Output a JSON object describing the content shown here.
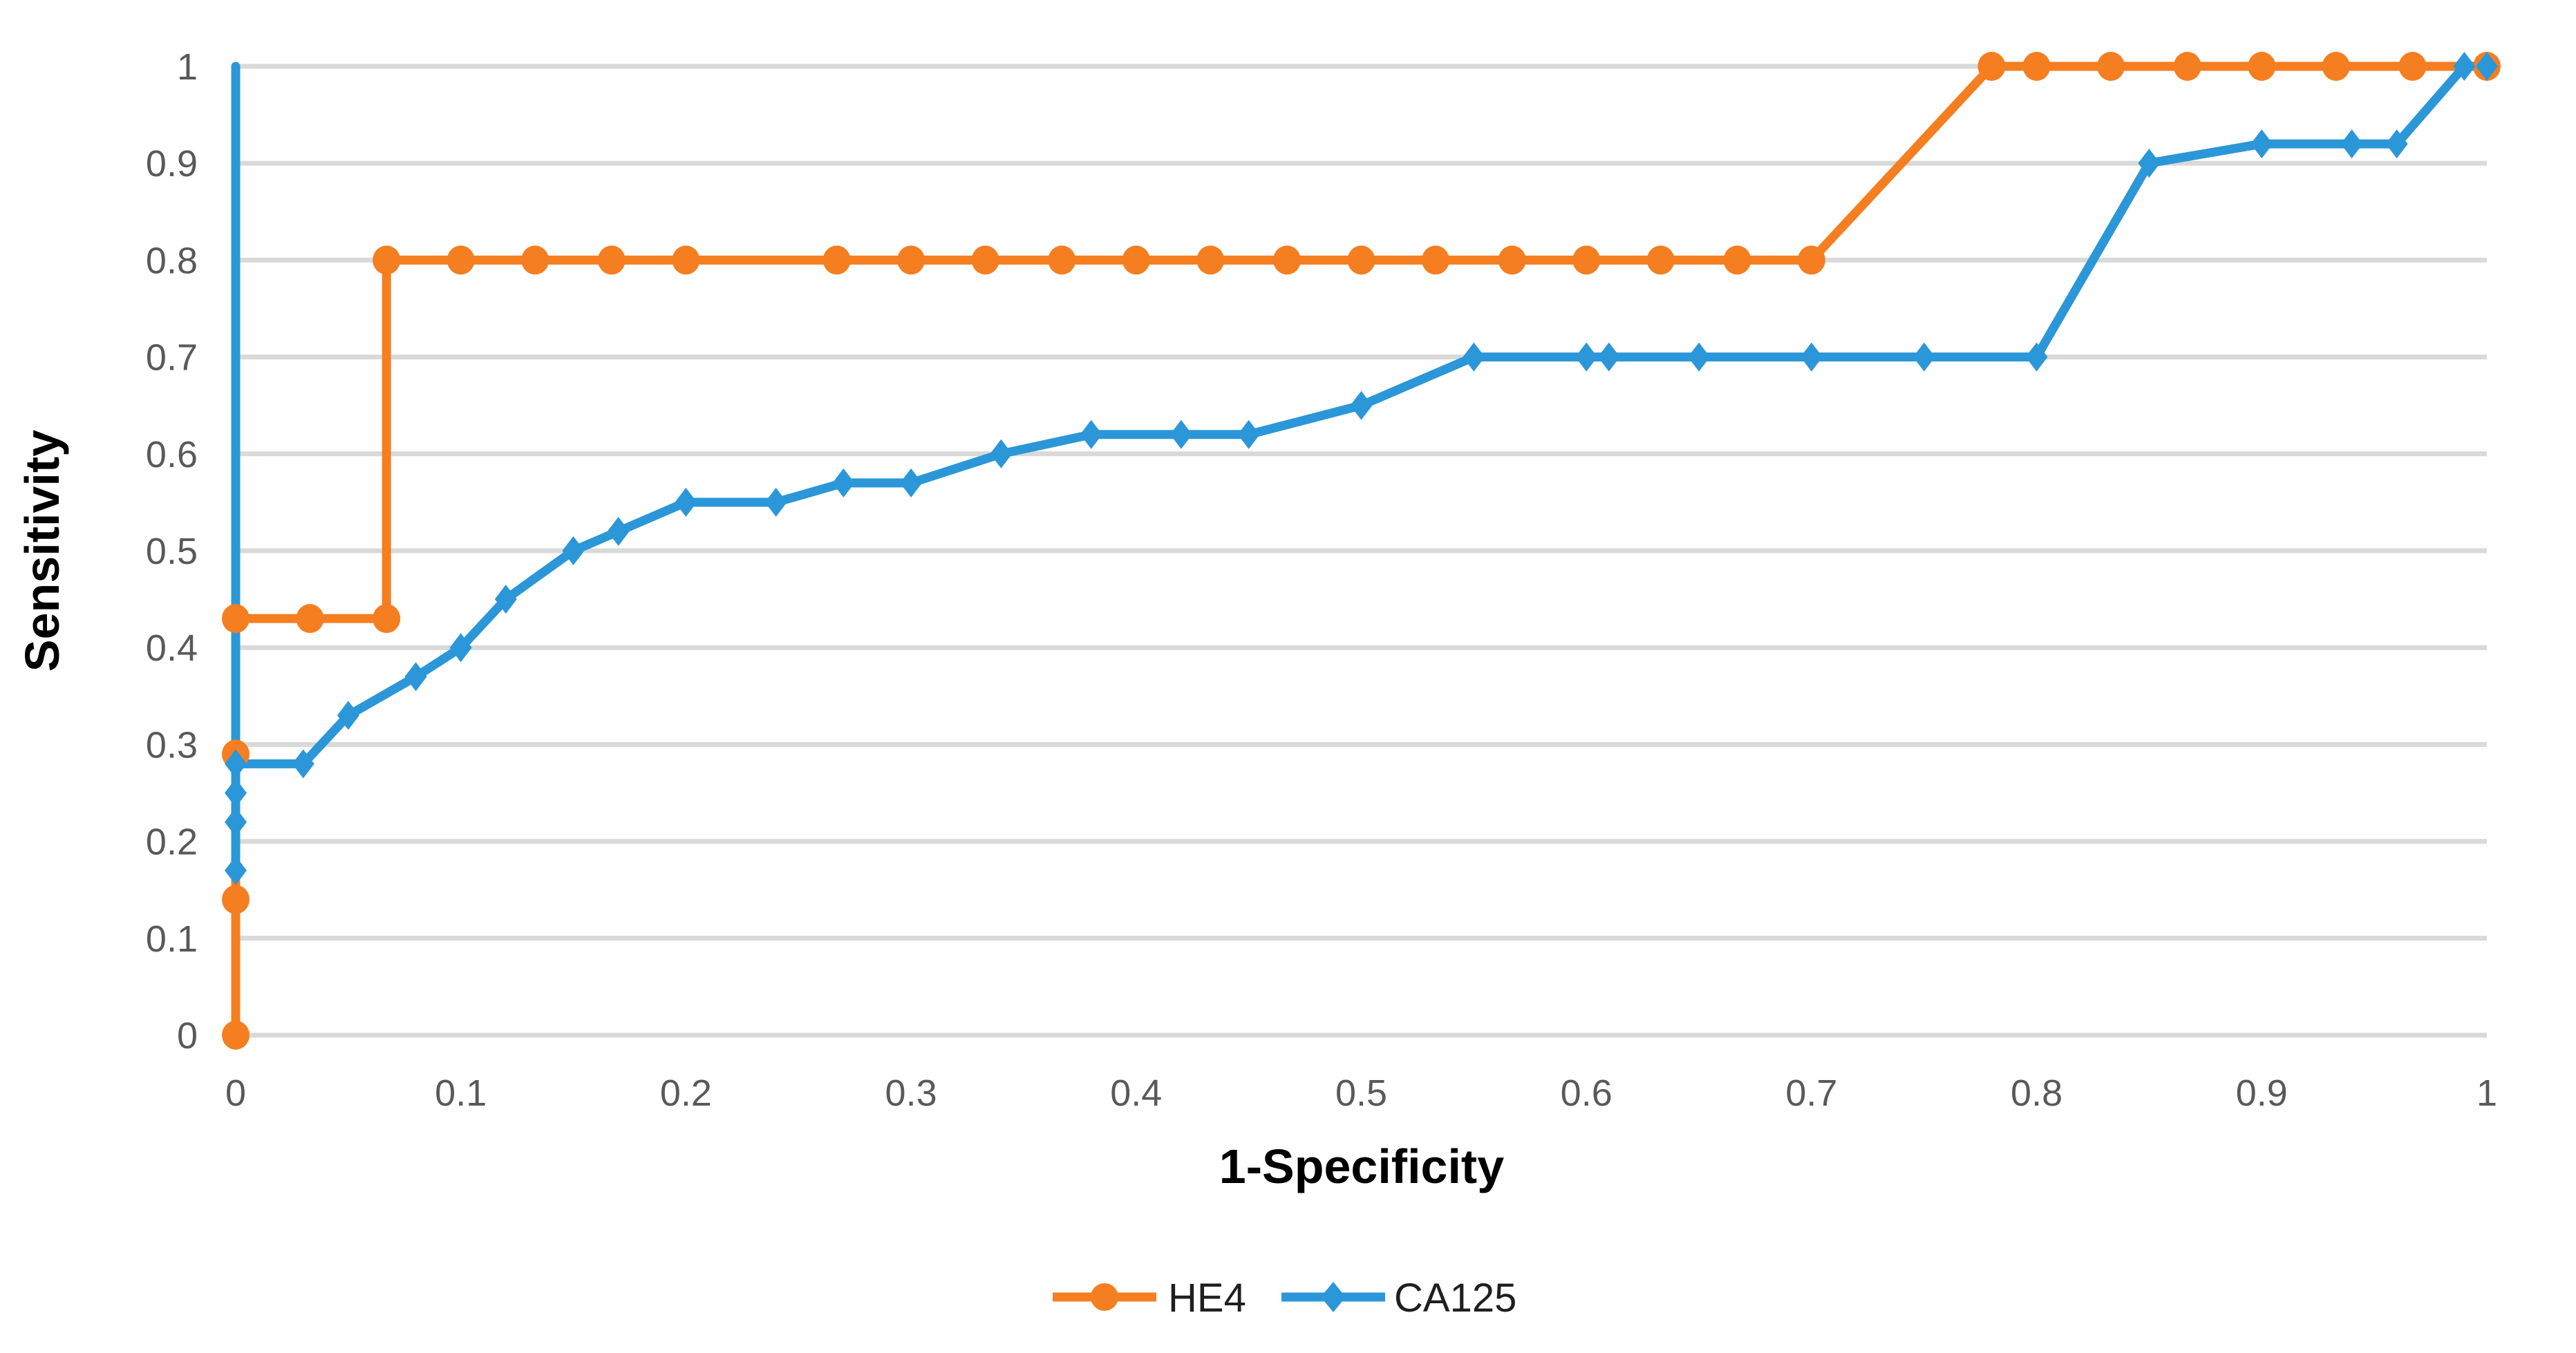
{
  "chart_data": {
    "type": "line",
    "title": "",
    "xlabel": "1-Specificity",
    "ylabel": "Sensitivity",
    "xlim": [
      0,
      1
    ],
    "ylim": [
      0,
      1
    ],
    "grid": "horizontal-only",
    "gridline_color": "#D9D9D9",
    "tick_text_color": "#595959",
    "axis_title_color": "#000000",
    "legend_position": "bottom-center",
    "xticks": [
      0,
      0.1,
      0.2,
      0.3,
      0.4,
      0.5,
      0.6,
      0.7,
      0.8,
      0.9,
      1
    ],
    "xtick_labels": [
      "0",
      "0.1",
      "0.2",
      "0.3",
      "0.4",
      "0.5",
      "0.6",
      "0.7",
      "0.8",
      "0.9",
      "1"
    ],
    "yticks": [
      0,
      0.1,
      0.2,
      0.3,
      0.4,
      0.5,
      0.6,
      0.7,
      0.8,
      0.9,
      1
    ],
    "ytick_labels": [
      "0",
      "0.1",
      "0.2",
      "0.3",
      "0.4",
      "0.5",
      "0.6",
      "0.7",
      "0.8",
      "0.9",
      "1"
    ],
    "series": [
      {
        "name": "HE4",
        "color": "#F57E20",
        "marker": "circle",
        "first_point_has_marker": true,
        "points": [
          [
            0,
            0
          ],
          [
            0,
            0.14
          ],
          [
            0,
            0.29
          ],
          [
            0,
            0.43
          ],
          [
            0.033,
            0.43
          ],
          [
            0.067,
            0.43
          ],
          [
            0.067,
            0.8
          ],
          [
            0.1,
            0.8
          ],
          [
            0.133,
            0.8
          ],
          [
            0.167,
            0.8
          ],
          [
            0.2,
            0.8
          ],
          [
            0.267,
            0.8
          ],
          [
            0.3,
            0.8
          ],
          [
            0.333,
            0.8
          ],
          [
            0.367,
            0.8
          ],
          [
            0.4,
            0.8
          ],
          [
            0.433,
            0.8
          ],
          [
            0.467,
            0.8
          ],
          [
            0.5,
            0.8
          ],
          [
            0.533,
            0.8
          ],
          [
            0.567,
            0.8
          ],
          [
            0.6,
            0.8
          ],
          [
            0.633,
            0.8
          ],
          [
            0.667,
            0.8
          ],
          [
            0.7,
            0.8
          ],
          [
            0.78,
            1
          ],
          [
            0.8,
            1
          ],
          [
            0.833,
            1
          ],
          [
            0.867,
            1
          ],
          [
            0.9,
            1
          ],
          [
            0.933,
            1
          ],
          [
            0.967,
            1
          ],
          [
            1,
            1
          ]
        ]
      },
      {
        "name": "CA125",
        "color": "#2B97D8",
        "marker": "diamond",
        "first_point_has_marker": false,
        "points": [
          [
            0,
            1
          ],
          [
            0,
            0.17
          ],
          [
            0,
            0.22
          ],
          [
            0,
            0.25
          ],
          [
            0,
            0.28
          ],
          [
            0.03,
            0.28
          ],
          [
            0.05,
            0.33
          ],
          [
            0.08,
            0.37
          ],
          [
            0.1,
            0.4
          ],
          [
            0.12,
            0.45
          ],
          [
            0.15,
            0.5
          ],
          [
            0.17,
            0.52
          ],
          [
            0.2,
            0.55
          ],
          [
            0.24,
            0.55
          ],
          [
            0.27,
            0.57
          ],
          [
            0.3,
            0.57
          ],
          [
            0.34,
            0.6
          ],
          [
            0.38,
            0.62
          ],
          [
            0.42,
            0.62
          ],
          [
            0.45,
            0.62
          ],
          [
            0.5,
            0.65
          ],
          [
            0.55,
            0.7
          ],
          [
            0.6,
            0.7
          ],
          [
            0.61,
            0.7
          ],
          [
            0.65,
            0.7
          ],
          [
            0.7,
            0.7
          ],
          [
            0.75,
            0.7
          ],
          [
            0.8,
            0.7
          ],
          [
            0.85,
            0.9
          ],
          [
            0.9,
            0.92
          ],
          [
            0.94,
            0.92
          ],
          [
            0.96,
            0.92
          ],
          [
            0.99,
            1
          ],
          [
            1,
            1
          ]
        ]
      }
    ],
    "legend": {
      "items": [
        {
          "label": "HE4"
        },
        {
          "label": "CA125"
        }
      ]
    }
  }
}
